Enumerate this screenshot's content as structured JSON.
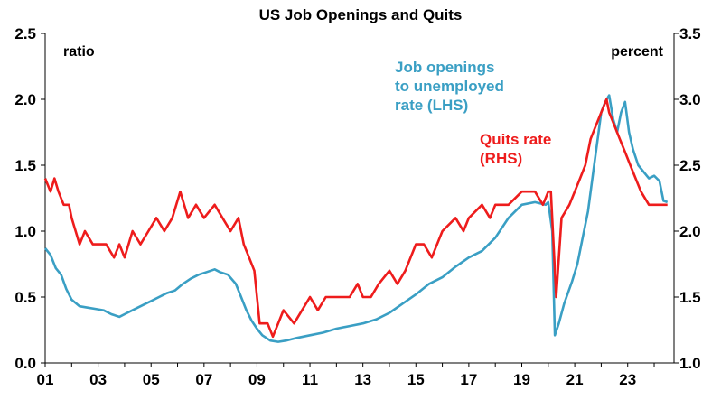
{
  "chart_data": {
    "type": "line",
    "title": "US Job Openings and Quits",
    "left_unit_label": "ratio",
    "right_unit_label": "percent",
    "x_tick_labels": [
      "01",
      "03",
      "05",
      "07",
      "09",
      "11",
      "13",
      "15",
      "17",
      "19",
      "21",
      "23"
    ],
    "x_range": [
      2001.0,
      2024.75
    ],
    "left_axis": {
      "range": [
        0.0,
        2.5
      ],
      "ticks": [
        "0.0",
        "0.5",
        "1.0",
        "1.5",
        "2.0",
        "2.5"
      ]
    },
    "right_axis": {
      "range": [
        1.0,
        3.5
      ],
      "ticks": [
        "1.0",
        "1.5",
        "2.0",
        "2.5",
        "3.0",
        "3.5"
      ]
    },
    "grid": false,
    "series": [
      {
        "name": "Job openings to unemployed rate (LHS)",
        "axis": "left",
        "color": "#3a9fc4",
        "label_lines": [
          "Job openings",
          "to unemployed",
          "rate (LHS)"
        ],
        "points": [
          [
            2001.0,
            0.87
          ],
          [
            2001.2,
            0.82
          ],
          [
            2001.4,
            0.72
          ],
          [
            2001.6,
            0.67
          ],
          [
            2001.8,
            0.56
          ],
          [
            2002.0,
            0.48
          ],
          [
            2002.3,
            0.43
          ],
          [
            2002.6,
            0.42
          ],
          [
            2002.9,
            0.41
          ],
          [
            2003.2,
            0.4
          ],
          [
            2003.5,
            0.37
          ],
          [
            2003.8,
            0.35
          ],
          [
            2004.0,
            0.37
          ],
          [
            2004.3,
            0.4
          ],
          [
            2004.6,
            0.43
          ],
          [
            2005.0,
            0.47
          ],
          [
            2005.3,
            0.5
          ],
          [
            2005.6,
            0.53
          ],
          [
            2005.9,
            0.55
          ],
          [
            2006.2,
            0.6
          ],
          [
            2006.5,
            0.64
          ],
          [
            2006.8,
            0.67
          ],
          [
            2007.1,
            0.69
          ],
          [
            2007.4,
            0.71
          ],
          [
            2007.6,
            0.69
          ],
          [
            2007.9,
            0.67
          ],
          [
            2008.2,
            0.6
          ],
          [
            2008.4,
            0.5
          ],
          [
            2008.6,
            0.4
          ],
          [
            2008.8,
            0.32
          ],
          [
            2009.0,
            0.26
          ],
          [
            2009.2,
            0.21
          ],
          [
            2009.5,
            0.17
          ],
          [
            2009.8,
            0.16
          ],
          [
            2010.1,
            0.17
          ],
          [
            2010.5,
            0.19
          ],
          [
            2011.0,
            0.21
          ],
          [
            2011.5,
            0.23
          ],
          [
            2012.0,
            0.26
          ],
          [
            2012.5,
            0.28
          ],
          [
            2013.0,
            0.3
          ],
          [
            2013.5,
            0.33
          ],
          [
            2014.0,
            0.38
          ],
          [
            2014.5,
            0.45
          ],
          [
            2015.0,
            0.52
          ],
          [
            2015.5,
            0.6
          ],
          [
            2016.0,
            0.65
          ],
          [
            2016.5,
            0.73
          ],
          [
            2017.0,
            0.8
          ],
          [
            2017.5,
            0.85
          ],
          [
            2018.0,
            0.95
          ],
          [
            2018.5,
            1.1
          ],
          [
            2019.0,
            1.2
          ],
          [
            2019.5,
            1.22
          ],
          [
            2019.9,
            1.2
          ],
          [
            2020.0,
            1.22
          ],
          [
            2020.15,
            1.0
          ],
          [
            2020.25,
            0.21
          ],
          [
            2020.4,
            0.3
          ],
          [
            2020.6,
            0.45
          ],
          [
            2020.9,
            0.62
          ],
          [
            2021.1,
            0.75
          ],
          [
            2021.3,
            0.95
          ],
          [
            2021.5,
            1.15
          ],
          [
            2021.7,
            1.45
          ],
          [
            2021.9,
            1.75
          ],
          [
            2022.0,
            1.9
          ],
          [
            2022.15,
            1.98
          ],
          [
            2022.3,
            2.03
          ],
          [
            2022.45,
            1.85
          ],
          [
            2022.6,
            1.75
          ],
          [
            2022.75,
            1.9
          ],
          [
            2022.9,
            1.98
          ],
          [
            2023.05,
            1.75
          ],
          [
            2023.2,
            1.62
          ],
          [
            2023.4,
            1.5
          ],
          [
            2023.6,
            1.45
          ],
          [
            2023.8,
            1.4
          ],
          [
            2024.0,
            1.42
          ],
          [
            2024.2,
            1.38
          ],
          [
            2024.35,
            1.23
          ],
          [
            2024.5,
            1.22
          ]
        ]
      },
      {
        "name": "Quits rate (RHS)",
        "axis": "right",
        "color": "#ee1c1c",
        "label_lines": [
          "Quits rate",
          "(RHS)"
        ],
        "points": [
          [
            2001.0,
            2.4
          ],
          [
            2001.2,
            2.3
          ],
          [
            2001.35,
            2.4
          ],
          [
            2001.5,
            2.3
          ],
          [
            2001.7,
            2.2
          ],
          [
            2001.9,
            2.2
          ],
          [
            2002.0,
            2.1
          ],
          [
            2002.15,
            2.0
          ],
          [
            2002.3,
            1.9
          ],
          [
            2002.5,
            2.0
          ],
          [
            2002.8,
            1.9
          ],
          [
            2003.0,
            1.9
          ],
          [
            2003.3,
            1.9
          ],
          [
            2003.6,
            1.8
          ],
          [
            2003.8,
            1.9
          ],
          [
            2004.0,
            1.8
          ],
          [
            2004.3,
            2.0
          ],
          [
            2004.6,
            1.9
          ],
          [
            2004.9,
            2.0
          ],
          [
            2005.2,
            2.1
          ],
          [
            2005.5,
            2.0
          ],
          [
            2005.8,
            2.1
          ],
          [
            2006.1,
            2.3
          ],
          [
            2006.4,
            2.1
          ],
          [
            2006.7,
            2.2
          ],
          [
            2007.0,
            2.1
          ],
          [
            2007.4,
            2.2
          ],
          [
            2007.7,
            2.1
          ],
          [
            2008.0,
            2.0
          ],
          [
            2008.3,
            2.1
          ],
          [
            2008.5,
            1.9
          ],
          [
            2008.7,
            1.8
          ],
          [
            2008.9,
            1.7
          ],
          [
            2009.1,
            1.3
          ],
          [
            2009.4,
            1.3
          ],
          [
            2009.6,
            1.2
          ],
          [
            2009.8,
            1.3
          ],
          [
            2010.0,
            1.4
          ],
          [
            2010.4,
            1.3
          ],
          [
            2010.7,
            1.4
          ],
          [
            2011.0,
            1.5
          ],
          [
            2011.3,
            1.4
          ],
          [
            2011.6,
            1.5
          ],
          [
            2012.0,
            1.5
          ],
          [
            2012.5,
            1.5
          ],
          [
            2012.8,
            1.6
          ],
          [
            2013.0,
            1.5
          ],
          [
            2013.3,
            1.5
          ],
          [
            2013.6,
            1.6
          ],
          [
            2014.0,
            1.7
          ],
          [
            2014.3,
            1.6
          ],
          [
            2014.6,
            1.7
          ],
          [
            2015.0,
            1.9
          ],
          [
            2015.3,
            1.9
          ],
          [
            2015.6,
            1.8
          ],
          [
            2016.0,
            2.0
          ],
          [
            2016.5,
            2.1
          ],
          [
            2016.8,
            2.0
          ],
          [
            2017.0,
            2.1
          ],
          [
            2017.5,
            2.2
          ],
          [
            2017.8,
            2.1
          ],
          [
            2018.0,
            2.2
          ],
          [
            2018.5,
            2.2
          ],
          [
            2019.0,
            2.3
          ],
          [
            2019.5,
            2.3
          ],
          [
            2019.8,
            2.2
          ],
          [
            2020.0,
            2.3
          ],
          [
            2020.1,
            2.3
          ],
          [
            2020.3,
            1.5
          ],
          [
            2020.5,
            2.1
          ],
          [
            2020.8,
            2.2
          ],
          [
            2021.0,
            2.3
          ],
          [
            2021.2,
            2.4
          ],
          [
            2021.4,
            2.5
          ],
          [
            2021.6,
            2.7
          ],
          [
            2021.8,
            2.8
          ],
          [
            2022.0,
            2.9
          ],
          [
            2022.2,
            3.0
          ],
          [
            2022.3,
            2.9
          ],
          [
            2022.5,
            2.8
          ],
          [
            2022.7,
            2.7
          ],
          [
            2022.9,
            2.6
          ],
          [
            2023.1,
            2.5
          ],
          [
            2023.3,
            2.4
          ],
          [
            2023.5,
            2.3
          ],
          [
            2023.8,
            2.2
          ],
          [
            2024.0,
            2.2
          ],
          [
            2024.2,
            2.2
          ],
          [
            2024.5,
            2.2
          ]
        ]
      }
    ]
  }
}
